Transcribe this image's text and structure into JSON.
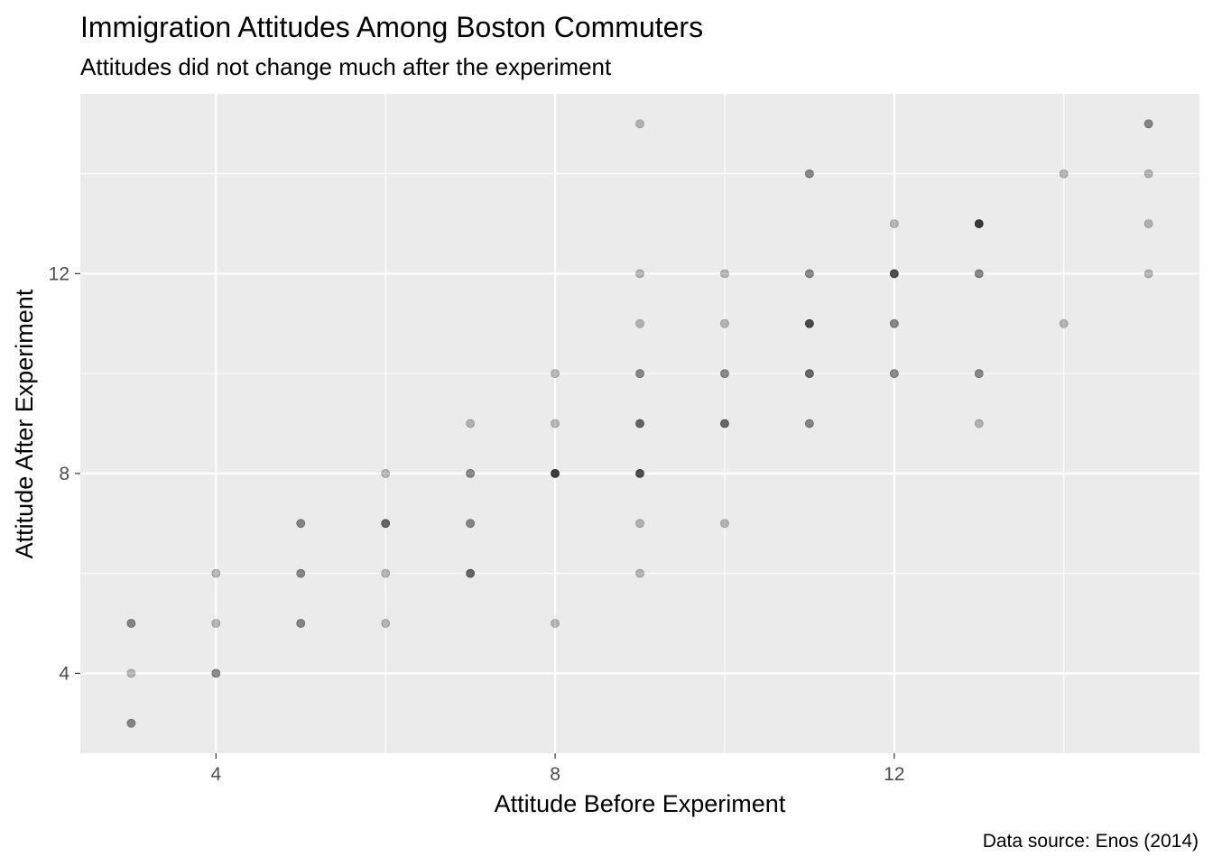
{
  "chart_data": {
    "type": "scatter",
    "title": "Immigration Attitudes Among Boston Commuters",
    "subtitle": "Attitudes did not change much after the experiment",
    "xlabel": "Attitude Before Experiment",
    "ylabel": "Attitude After Experiment",
    "caption": "Data source: Enos (2014)",
    "xlim": [
      2.4,
      15.6
    ],
    "ylim": [
      2.4,
      15.6
    ],
    "x_ticks": [
      4,
      8,
      12
    ],
    "y_ticks": [
      4,
      8,
      12
    ],
    "grid": true,
    "point_color": "#000000",
    "point_alpha": 0.25,
    "panel_background": "#ebebeb",
    "points": [
      {
        "x": 3,
        "y": 3,
        "n": 2
      },
      {
        "x": 3,
        "y": 4,
        "n": 1
      },
      {
        "x": 3,
        "y": 5,
        "n": 2
      },
      {
        "x": 4,
        "y": 4,
        "n": 2
      },
      {
        "x": 4,
        "y": 5,
        "n": 1
      },
      {
        "x": 4,
        "y": 6,
        "n": 1
      },
      {
        "x": 5,
        "y": 5,
        "n": 2
      },
      {
        "x": 5,
        "y": 6,
        "n": 2
      },
      {
        "x": 5,
        "y": 7,
        "n": 2
      },
      {
        "x": 6,
        "y": 5,
        "n": 1
      },
      {
        "x": 6,
        "y": 6,
        "n": 1
      },
      {
        "x": 6,
        "y": 7,
        "n": 3
      },
      {
        "x": 6,
        "y": 8,
        "n": 1
      },
      {
        "x": 7,
        "y": 6,
        "n": 3
      },
      {
        "x": 7,
        "y": 7,
        "n": 2
      },
      {
        "x": 7,
        "y": 8,
        "n": 2
      },
      {
        "x": 7,
        "y": 9,
        "n": 1
      },
      {
        "x": 8,
        "y": 5,
        "n": 1
      },
      {
        "x": 8,
        "y": 8,
        "n": 5
      },
      {
        "x": 8,
        "y": 9,
        "n": 1
      },
      {
        "x": 8,
        "y": 10,
        "n": 1
      },
      {
        "x": 9,
        "y": 6,
        "n": 1
      },
      {
        "x": 9,
        "y": 7,
        "n": 1
      },
      {
        "x": 9,
        "y": 8,
        "n": 4
      },
      {
        "x": 9,
        "y": 9,
        "n": 3
      },
      {
        "x": 9,
        "y": 10,
        "n": 2
      },
      {
        "x": 9,
        "y": 11,
        "n": 1
      },
      {
        "x": 9,
        "y": 12,
        "n": 1
      },
      {
        "x": 9,
        "y": 15,
        "n": 1
      },
      {
        "x": 10,
        "y": 7,
        "n": 1
      },
      {
        "x": 10,
        "y": 9,
        "n": 3
      },
      {
        "x": 10,
        "y": 10,
        "n": 2
      },
      {
        "x": 10,
        "y": 11,
        "n": 1
      },
      {
        "x": 10,
        "y": 12,
        "n": 1
      },
      {
        "x": 11,
        "y": 9,
        "n": 2
      },
      {
        "x": 11,
        "y": 10,
        "n": 3
      },
      {
        "x": 11,
        "y": 11,
        "n": 4
      },
      {
        "x": 11,
        "y": 12,
        "n": 2
      },
      {
        "x": 11,
        "y": 14,
        "n": 2
      },
      {
        "x": 12,
        "y": 10,
        "n": 2
      },
      {
        "x": 12,
        "y": 11,
        "n": 2
      },
      {
        "x": 12,
        "y": 12,
        "n": 4
      },
      {
        "x": 12,
        "y": 13,
        "n": 1
      },
      {
        "x": 13,
        "y": 9,
        "n": 1
      },
      {
        "x": 13,
        "y": 10,
        "n": 2
      },
      {
        "x": 13,
        "y": 12,
        "n": 2
      },
      {
        "x": 13,
        "y": 13,
        "n": 5
      },
      {
        "x": 14,
        "y": 11,
        "n": 1
      },
      {
        "x": 14,
        "y": 14,
        "n": 1
      },
      {
        "x": 15,
        "y": 12,
        "n": 1
      },
      {
        "x": 15,
        "y": 13,
        "n": 1
      },
      {
        "x": 15,
        "y": 14,
        "n": 1
      },
      {
        "x": 15,
        "y": 15,
        "n": 2
      }
    ]
  }
}
